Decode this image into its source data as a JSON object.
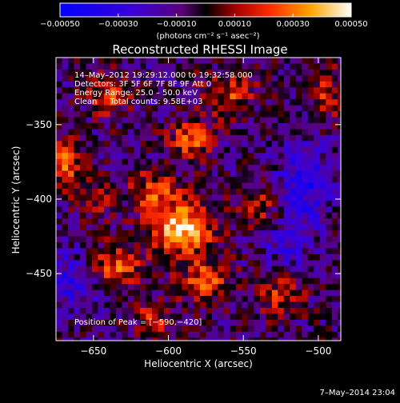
{
  "chart_data": {
    "type": "heatmap",
    "title": "Reconstructed RHESSI Image",
    "xlabel": "Heliocentric X (arcsec)",
    "ylabel": "Heliocentric Y (arcsec)",
    "xlim": [
      -675,
      -485
    ],
    "ylim": [
      -495,
      -305
    ],
    "x_ticks": [
      {
        "value": -650,
        "label": "−650"
      },
      {
        "value": -600,
        "label": "−600"
      },
      {
        "value": -550,
        "label": "−550"
      },
      {
        "value": -500,
        "label": "−500"
      }
    ],
    "y_ticks": [
      {
        "value": -450,
        "label": "−450"
      },
      {
        "value": -400,
        "label": "−400"
      },
      {
        "value": -350,
        "label": "−350"
      }
    ],
    "colorbar": {
      "range": [
        -0.0005,
        0.0005
      ],
      "ticks": [
        {
          "value": -0.0005,
          "label": "−0.00050"
        },
        {
          "value": -0.0003,
          "label": "−0.00030"
        },
        {
          "value": -0.0001,
          "label": "−0.00010"
        },
        {
          "value": 0.0001,
          "label": "0.00010"
        },
        {
          "value": 0.0003,
          "label": "0.00030"
        },
        {
          "value": 0.0005,
          "label": "0.00050"
        }
      ],
      "units": "(photons cm⁻² s⁻¹ asec⁻²)"
    },
    "peak": {
      "x": -590,
      "y": -420,
      "value": 0.0005
    },
    "blobs": [
      {
        "x": -590,
        "y": -420,
        "amp": 1.0,
        "sx": 14,
        "sy": 12
      },
      {
        "x": -610,
        "y": -395,
        "amp": 0.55,
        "sx": 12,
        "sy": 10
      },
      {
        "x": -585,
        "y": -360,
        "amp": 0.65,
        "sx": 10,
        "sy": 9
      },
      {
        "x": -560,
        "y": -330,
        "amp": 0.5,
        "sx": 12,
        "sy": 10
      },
      {
        "x": -670,
        "y": -375,
        "amp": 0.75,
        "sx": 8,
        "sy": 10
      },
      {
        "x": -640,
        "y": -330,
        "amp": 0.5,
        "sx": 10,
        "sy": 10
      },
      {
        "x": -635,
        "y": -445,
        "amp": 0.6,
        "sx": 12,
        "sy": 10
      },
      {
        "x": -575,
        "y": -455,
        "amp": 0.6,
        "sx": 12,
        "sy": 10
      },
      {
        "x": -540,
        "y": -405,
        "amp": 0.45,
        "sx": 10,
        "sy": 10
      },
      {
        "x": -525,
        "y": -465,
        "amp": 0.45,
        "sx": 10,
        "sy": 10
      },
      {
        "x": -495,
        "y": -330,
        "amp": 0.45,
        "sx": 8,
        "sy": 12
      },
      {
        "x": -610,
        "y": -480,
        "amp": 0.4,
        "sx": 10,
        "sy": 8
      },
      {
        "x": -650,
        "y": -400,
        "amp": 0.35,
        "sx": 9,
        "sy": 9
      }
    ],
    "dark_regions": [
      {
        "x": -510,
        "y": -390,
        "amp": 0.55,
        "sx": 12,
        "sy": 20
      },
      {
        "x": -665,
        "y": -455,
        "amp": 0.4,
        "sx": 12,
        "sy": 14
      },
      {
        "x": -520,
        "y": -430,
        "amp": 0.35,
        "sx": 10,
        "sy": 10
      }
    ]
  },
  "annotation": {
    "line1": "14–May–2012 19:29:12.000 to 19:32:58.000",
    "line2": "Detectors: 3F 5F 6F 7F 8F 9F Att 0",
    "line3": "Energy Range: 25.0 – 50.0 keV",
    "line4": "Clean     Total counts: 9.58E+03",
    "peak_text": "Position of Peak = [−590,−420]"
  },
  "footer": {
    "timestamp": "7–May–2014 23:04"
  }
}
